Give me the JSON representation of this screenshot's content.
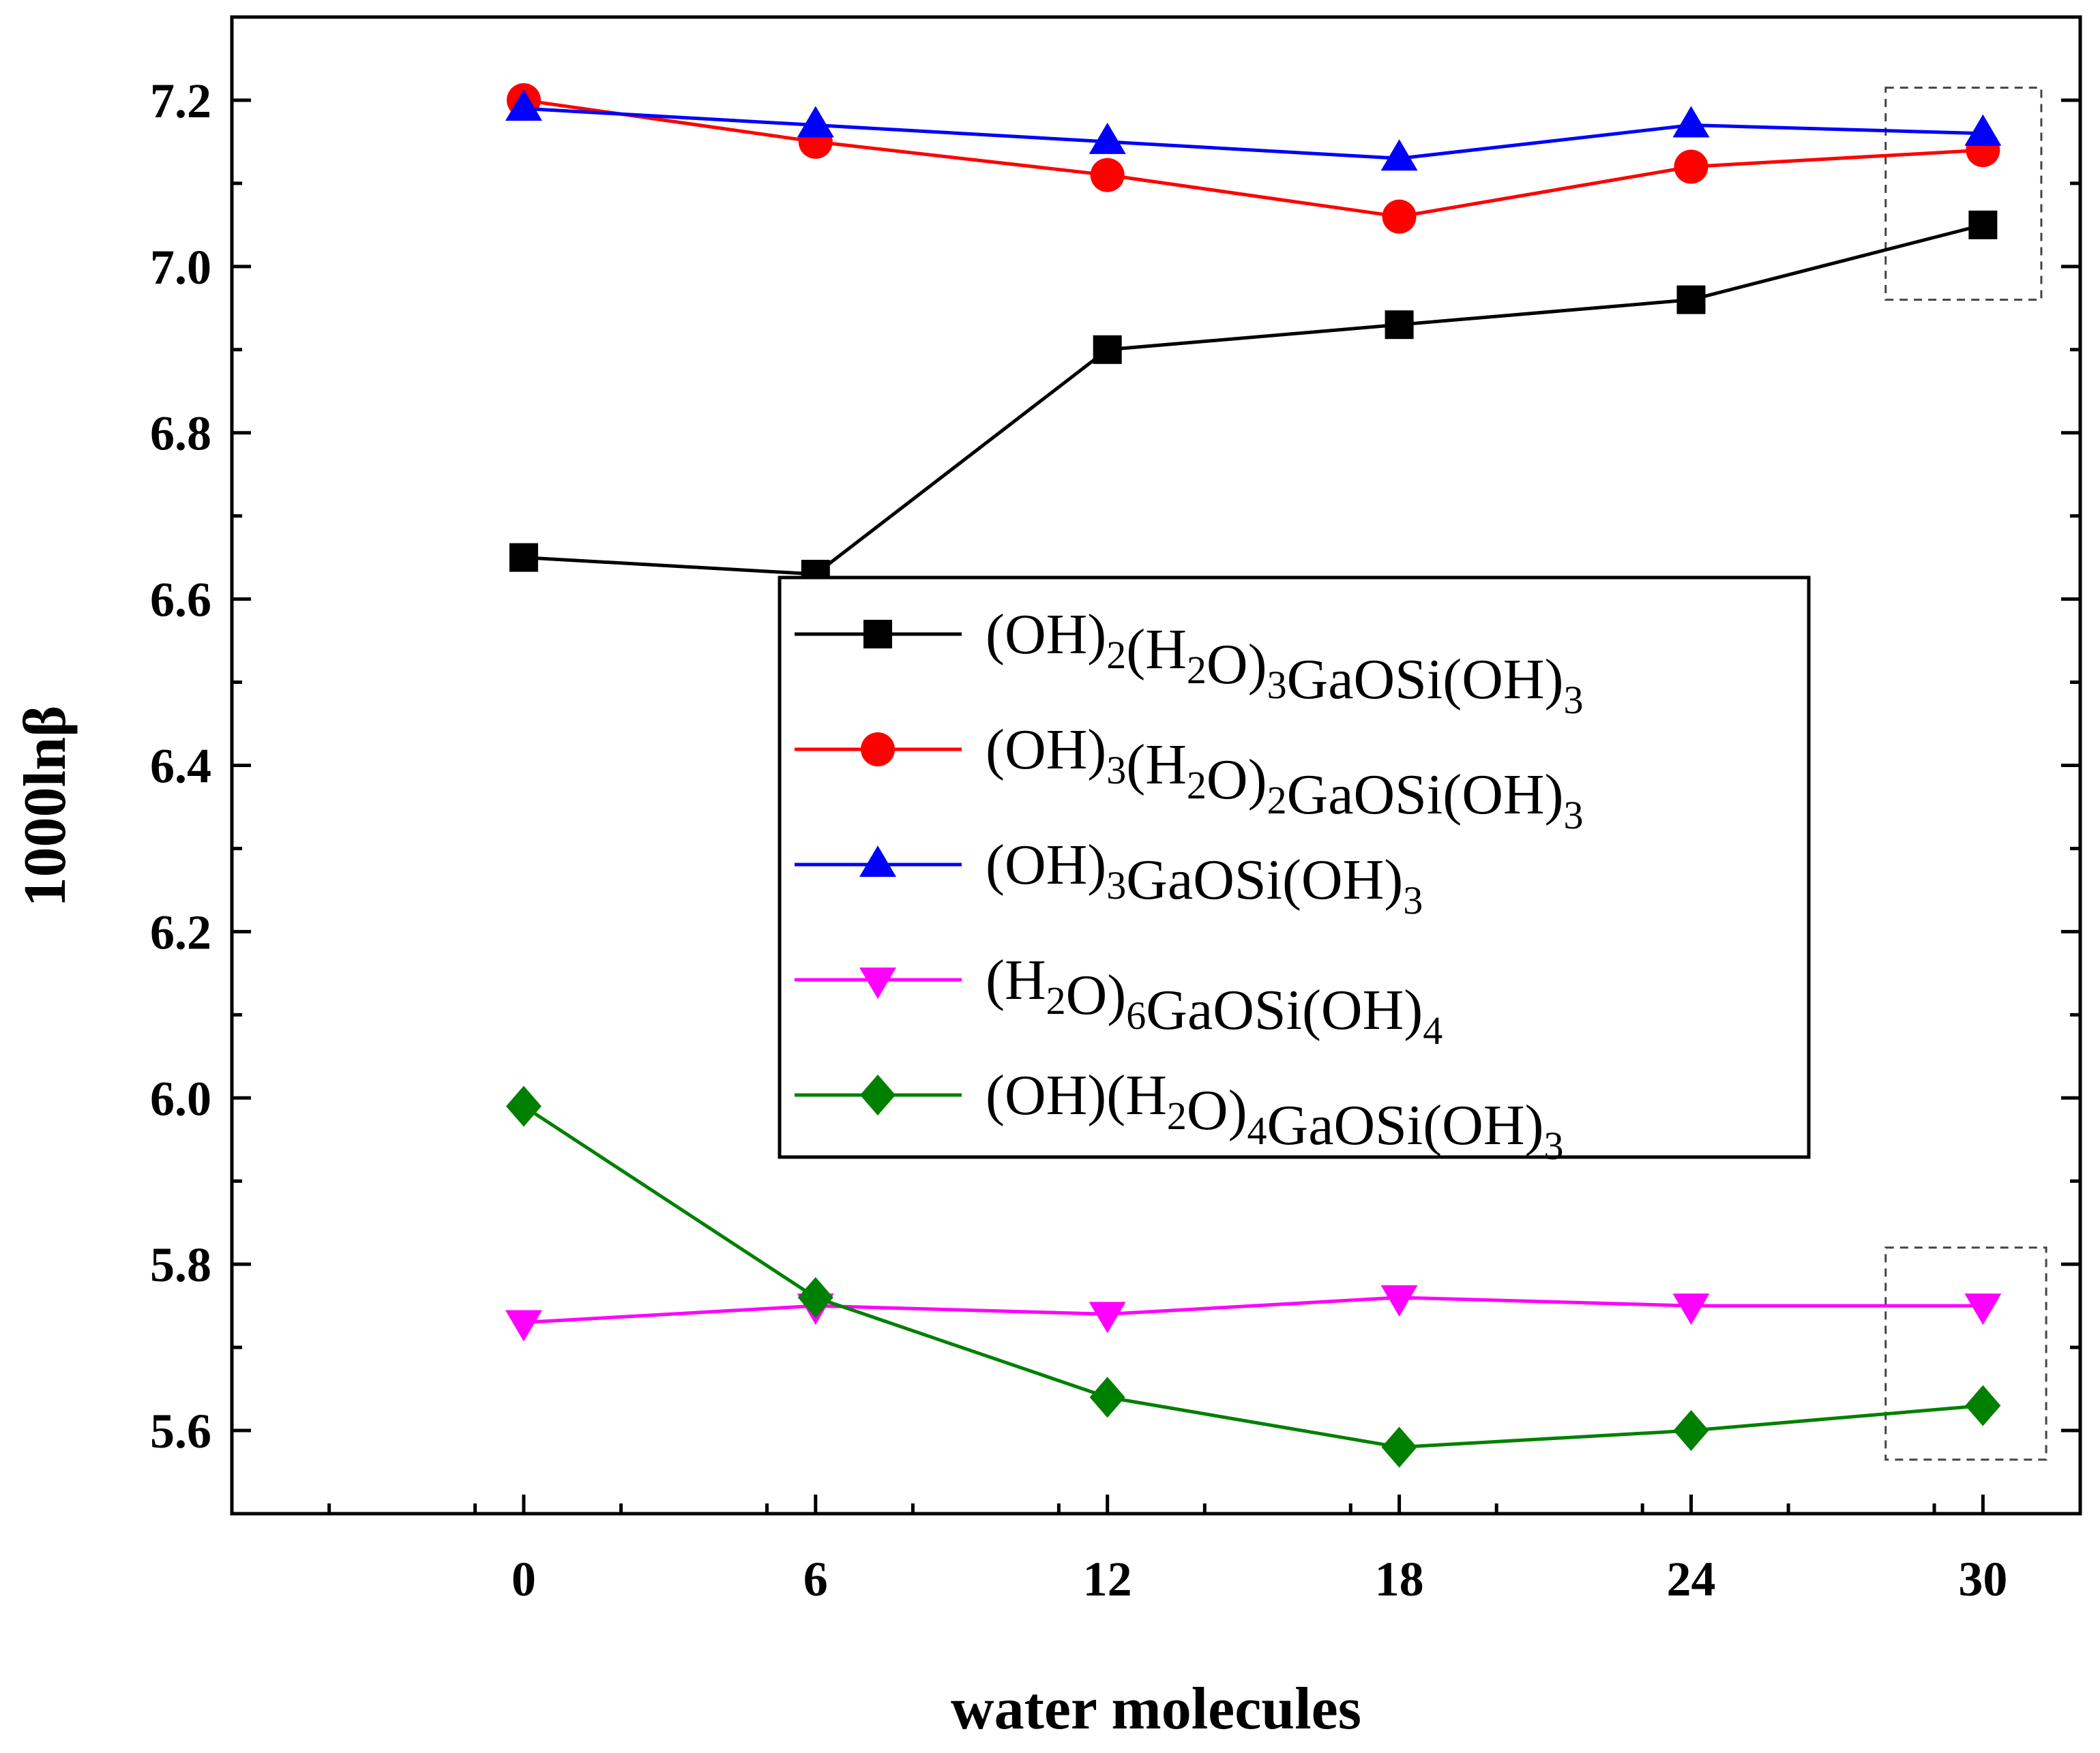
{
  "chart_data": {
    "type": "line",
    "title": "",
    "xlabel": "water molecules",
    "ylabel": "1000lnβ",
    "xlim": [
      -6,
      32
    ],
    "ylim": [
      5.5,
      7.3
    ],
    "x": [
      0,
      6,
      12,
      18,
      24,
      30
    ],
    "xticks": [
      0,
      6,
      12,
      18,
      24,
      30
    ],
    "xtick_labels": [
      "0",
      "6",
      "12",
      "18",
      "24",
      "30"
    ],
    "yticks": [
      5.6,
      5.8,
      6.0,
      6.2,
      6.4,
      6.6,
      6.8,
      7.0,
      7.2
    ],
    "ytick_labels": [
      "5.6",
      "5.8",
      "6.0",
      "6.2",
      "6.4",
      "6.6",
      "6.8",
      "7.0",
      "7.2"
    ],
    "grid": false,
    "legend_position": "center-right",
    "series": [
      {
        "name": "(OH)2(H2O)3GaOSi(OH)3",
        "color": "#000000",
        "marker": "square",
        "label_parts": [
          [
            "(OH)",
            ""
          ],
          [
            "2",
            "sub"
          ],
          [
            "(H",
            ""
          ],
          [
            "2",
            "sub"
          ],
          [
            "O)",
            ""
          ],
          [
            "3",
            "sub"
          ],
          [
            "GaOSi(OH)",
            ""
          ],
          [
            "3",
            "sub"
          ]
        ],
        "values": [
          6.65,
          6.63,
          6.9,
          6.93,
          6.96,
          7.05
        ]
      },
      {
        "name": "(OH)3(H2O)2GaOSi(OH)3",
        "color": "#ff0000",
        "marker": "circle",
        "label_parts": [
          [
            "(OH)",
            ""
          ],
          [
            "3",
            "sub"
          ],
          [
            "(H",
            ""
          ],
          [
            "2",
            "sub"
          ],
          [
            "O)",
            ""
          ],
          [
            "2",
            "sub"
          ],
          [
            "GaOSi(OH)",
            ""
          ],
          [
            "3",
            "sub"
          ]
        ],
        "values": [
          7.2,
          7.15,
          7.11,
          7.06,
          7.12,
          7.14
        ]
      },
      {
        "name": "(OH)3GaOSi(OH)3",
        "color": "#0000ff",
        "marker": "triangle-up",
        "label_parts": [
          [
            "(OH)",
            ""
          ],
          [
            "3",
            "sub"
          ],
          [
            "GaOSi(OH)",
            ""
          ],
          [
            "3",
            "sub"
          ]
        ],
        "values": [
          7.19,
          7.17,
          7.15,
          7.13,
          7.17,
          7.16
        ]
      },
      {
        "name": "(H2O)6GaOSi(OH)4",
        "color": "#ff00ff",
        "marker": "triangle-down",
        "label_parts": [
          [
            "(H",
            ""
          ],
          [
            "2",
            "sub"
          ],
          [
            "O)",
            ""
          ],
          [
            "6",
            "sub"
          ],
          [
            "GaOSi(OH)",
            ""
          ],
          [
            "4",
            "sub"
          ]
        ],
        "values": [
          5.73,
          5.75,
          5.74,
          5.76,
          5.75,
          5.75
        ]
      },
      {
        "name": "(OH)(H2O)4GaOSi(OH)3",
        "color": "#008000",
        "marker": "diamond",
        "label_parts": [
          [
            "(OH)(H",
            ""
          ],
          [
            "2",
            "sub"
          ],
          [
            "O)",
            ""
          ],
          [
            "4",
            "sub"
          ],
          [
            "GaOSi(OH)",
            ""
          ],
          [
            "3",
            "sub"
          ]
        ],
        "values": [
          5.99,
          5.76,
          5.64,
          5.58,
          5.6,
          5.63
        ]
      }
    ],
    "annotations": [
      {
        "type": "dashed-box",
        "x_range": [
          28,
          31.2
        ],
        "y_range": [
          6.96,
          7.215
        ]
      },
      {
        "type": "dashed-box",
        "x_range": [
          28,
          31.3
        ],
        "y_range": [
          5.565,
          5.82
        ]
      }
    ]
  }
}
